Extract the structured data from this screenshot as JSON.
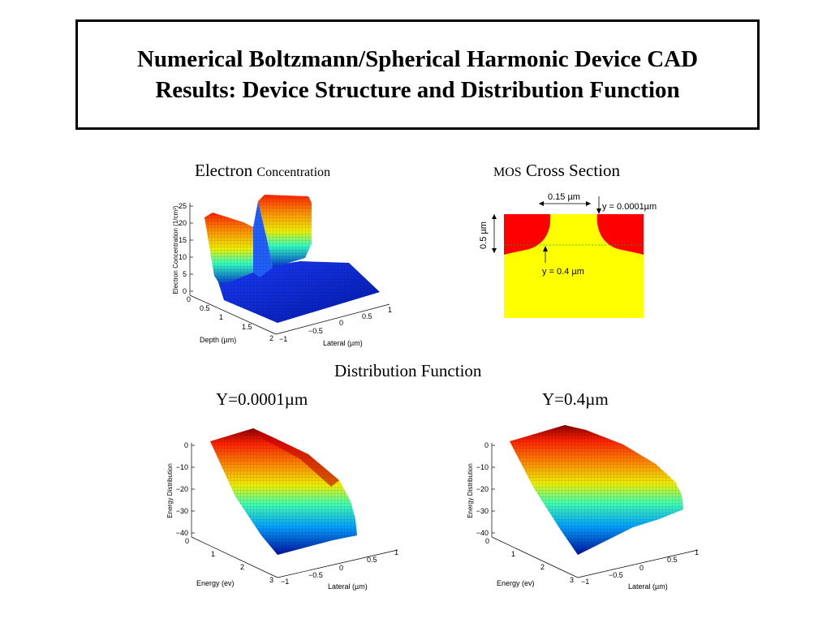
{
  "title": {
    "line1": "Numerical Boltzmann/Spherical Harmonic Device CAD",
    "line2": "Results: Device Structure and Distribution Function"
  },
  "captions": {
    "electron_main": "Electron",
    "electron_sub": "Concentration",
    "mos_sub": "MOS",
    "mos_main": "Cross Section",
    "distribution": "Distribution Function",
    "y1": "Y=0.0001µm",
    "y2": "Y=0.4µm"
  },
  "electron_plot": {
    "zlabel": "Electron Concentration (1/cm³)",
    "xlabel": "Depth (µm)",
    "ylabel": "Lateral (µm)",
    "zticks": [
      "25",
      "20",
      "15",
      "10",
      "5",
      "0"
    ],
    "xticks": [
      "0",
      "0.5",
      "1",
      "1.5",
      "2"
    ],
    "yticks": [
      "−1",
      "−0.5",
      "0",
      "0.5",
      "1"
    ]
  },
  "mos": {
    "width_label": "0.15 µm",
    "top_label": "y = 0.0001µm",
    "depth_label": "0.5 µm",
    "mid_label": "y = 0.4 µm",
    "colors": {
      "substrate": "#ffff00",
      "junction": "#ff0000",
      "cutline": "#00c000"
    }
  },
  "dist_plot_1": {
    "zlabel": "Energy Distribution",
    "xlabel": "Energy (ev)",
    "ylabel": "Lateral (µm)",
    "zticks": [
      "0",
      "−10",
      "−20",
      "−30",
      "−40"
    ],
    "xticks": [
      "0",
      "1",
      "2",
      "3"
    ],
    "yticks": [
      "−1",
      "−0.5",
      "0",
      "0.5",
      "1"
    ]
  },
  "dist_plot_2": {
    "zlabel": "Energy Distribution",
    "xlabel": "Energy (ev)",
    "ylabel": "Lateral (µm)",
    "zticks": [
      "0",
      "−10",
      "−20",
      "−30",
      "−40"
    ],
    "xticks": [
      "0",
      "1",
      "2",
      "3"
    ],
    "yticks": [
      "−1",
      "−0.5",
      "0",
      "0.5",
      "1"
    ]
  }
}
